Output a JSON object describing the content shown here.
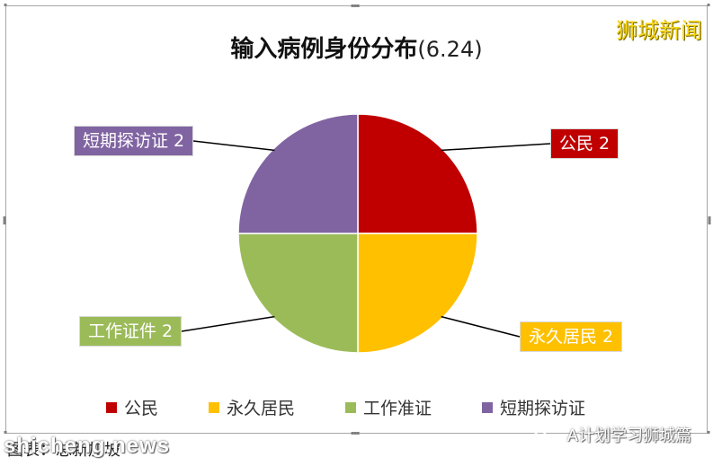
{
  "chart_data": {
    "type": "pie",
    "title": "输入病例身份分布",
    "date": "(6.24)",
    "categories": [
      "公民",
      "永久居民",
      "工作准证",
      "短期探访证"
    ],
    "values": [
      2,
      2,
      2,
      2
    ],
    "colors": [
      "#c00000",
      "#ffc000",
      "#9bbb59",
      "#8064a2"
    ],
    "data_labels": [
      "公民 2",
      "永久居民 2",
      "工作证件 2",
      "短期探访证 2"
    ],
    "legend_position": "bottom"
  },
  "brand": "狮城新闻",
  "footer": {
    "source_text": "图表：总新加坡",
    "watermark_left": "shicheng.news",
    "watermark_right": "A计划学习狮城篇"
  }
}
